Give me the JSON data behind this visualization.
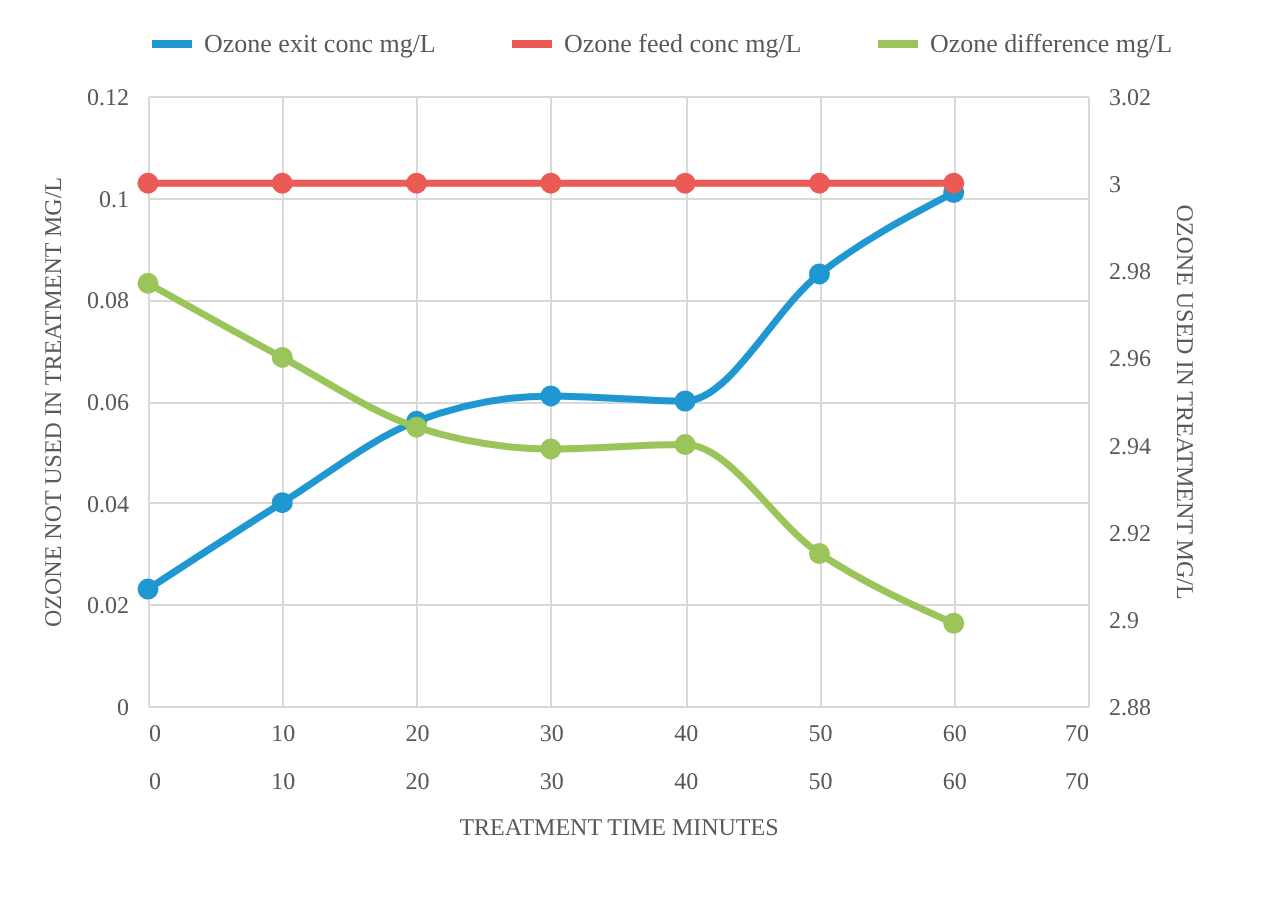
{
  "chart_data": {
    "type": "line",
    "x": [
      0,
      10,
      20,
      30,
      40,
      50,
      60
    ],
    "series": [
      {
        "name": "Ozone exit conc mg/L",
        "color": "#1f97d0",
        "values": [
          0.023,
          0.04,
          0.056,
          0.061,
          0.06,
          0.085,
          0.101
        ]
      },
      {
        "name": "Ozone feed conc mg/L",
        "color": "#ec5a55",
        "values": [
          3,
          3,
          3,
          3,
          3,
          3,
          3
        ],
        "axis": "y2"
      },
      {
        "name": "Ozone difference mg/L",
        "color": "#9bc55a",
        "values": [
          2.977,
          2.96,
          2.944,
          2.939,
          2.94,
          2.915,
          2.899
        ],
        "axis": "y2"
      }
    ],
    "xlabel": "TREATMENT TIME MINUTES",
    "ylabel": "OZONE NOT USED IN TREATMENT MG/L",
    "y2label": "OZONE USED IN TREATMENT MG/L",
    "xlim": [
      0,
      70
    ],
    "xticks": [
      0,
      10,
      20,
      30,
      40,
      50,
      60,
      70
    ],
    "x2lim": [
      0,
      70
    ],
    "x2ticks": [
      0,
      10,
      20,
      30,
      40,
      50,
      60,
      70
    ],
    "ylim": [
      0,
      0.12
    ],
    "yticks": [
      0,
      0.02,
      0.04,
      0.06,
      0.08,
      0.1,
      0.12
    ],
    "y2lim": [
      2.88,
      3.02
    ],
    "y2ticks": [
      2.88,
      2.9,
      2.92,
      2.94,
      2.96,
      2.98,
      3,
      3.02
    ],
    "grid": true,
    "legend": "top",
    "marker": "circle",
    "line_style": "solid"
  }
}
